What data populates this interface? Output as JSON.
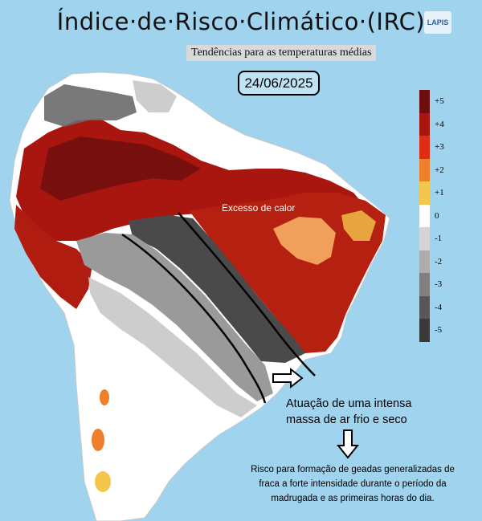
{
  "header": {
    "title": "Índice·de·Risco·Climático·(IRC)",
    "subtitle": "Tendências para as temperaturas médias",
    "date": "24/06/2025",
    "logo_text": "LAPIS"
  },
  "legend": {
    "items": [
      {
        "label": "+5",
        "color": "#6e0e0e"
      },
      {
        "label": "+4",
        "color": "#a8160f"
      },
      {
        "label": "+3",
        "color": "#e02c12"
      },
      {
        "label": "+2",
        "color": "#ef7f2b"
      },
      {
        "label": "+1",
        "color": "#f4c74c"
      },
      {
        "label": "0",
        "color": "#ffffff"
      },
      {
        "label": "-1",
        "color": "#d4d4d4"
      },
      {
        "label": "-2",
        "color": "#adadad"
      },
      {
        "label": "-3",
        "color": "#808080"
      },
      {
        "label": "-4",
        "color": "#575757"
      },
      {
        "label": "-5",
        "color": "#3a3a3a"
      }
    ]
  },
  "annotations": {
    "heat": "Excesso de calor",
    "cold_line1": "Atuação de uma intensa",
    "cold_line2": "massa de ar frio e seco",
    "frost_line1": "Risco para formação de geadas generalizadas de",
    "frost_line2": "fraca a forte intensidade durante o período da",
    "frost_line3": "madrugada e as primeiras horas do dia."
  },
  "colors": {
    "ocean": "#9fd3ee",
    "land_neutral": "#ffffff",
    "heat_dark": "#8b1a10",
    "heat_mid": "#c0280f",
    "heat_light": "#f0a05a",
    "cold_dark": "#3f3f3f",
    "cold_mid": "#8a8a8a",
    "cold_light": "#c8c8c8",
    "arrow": "#000000"
  }
}
